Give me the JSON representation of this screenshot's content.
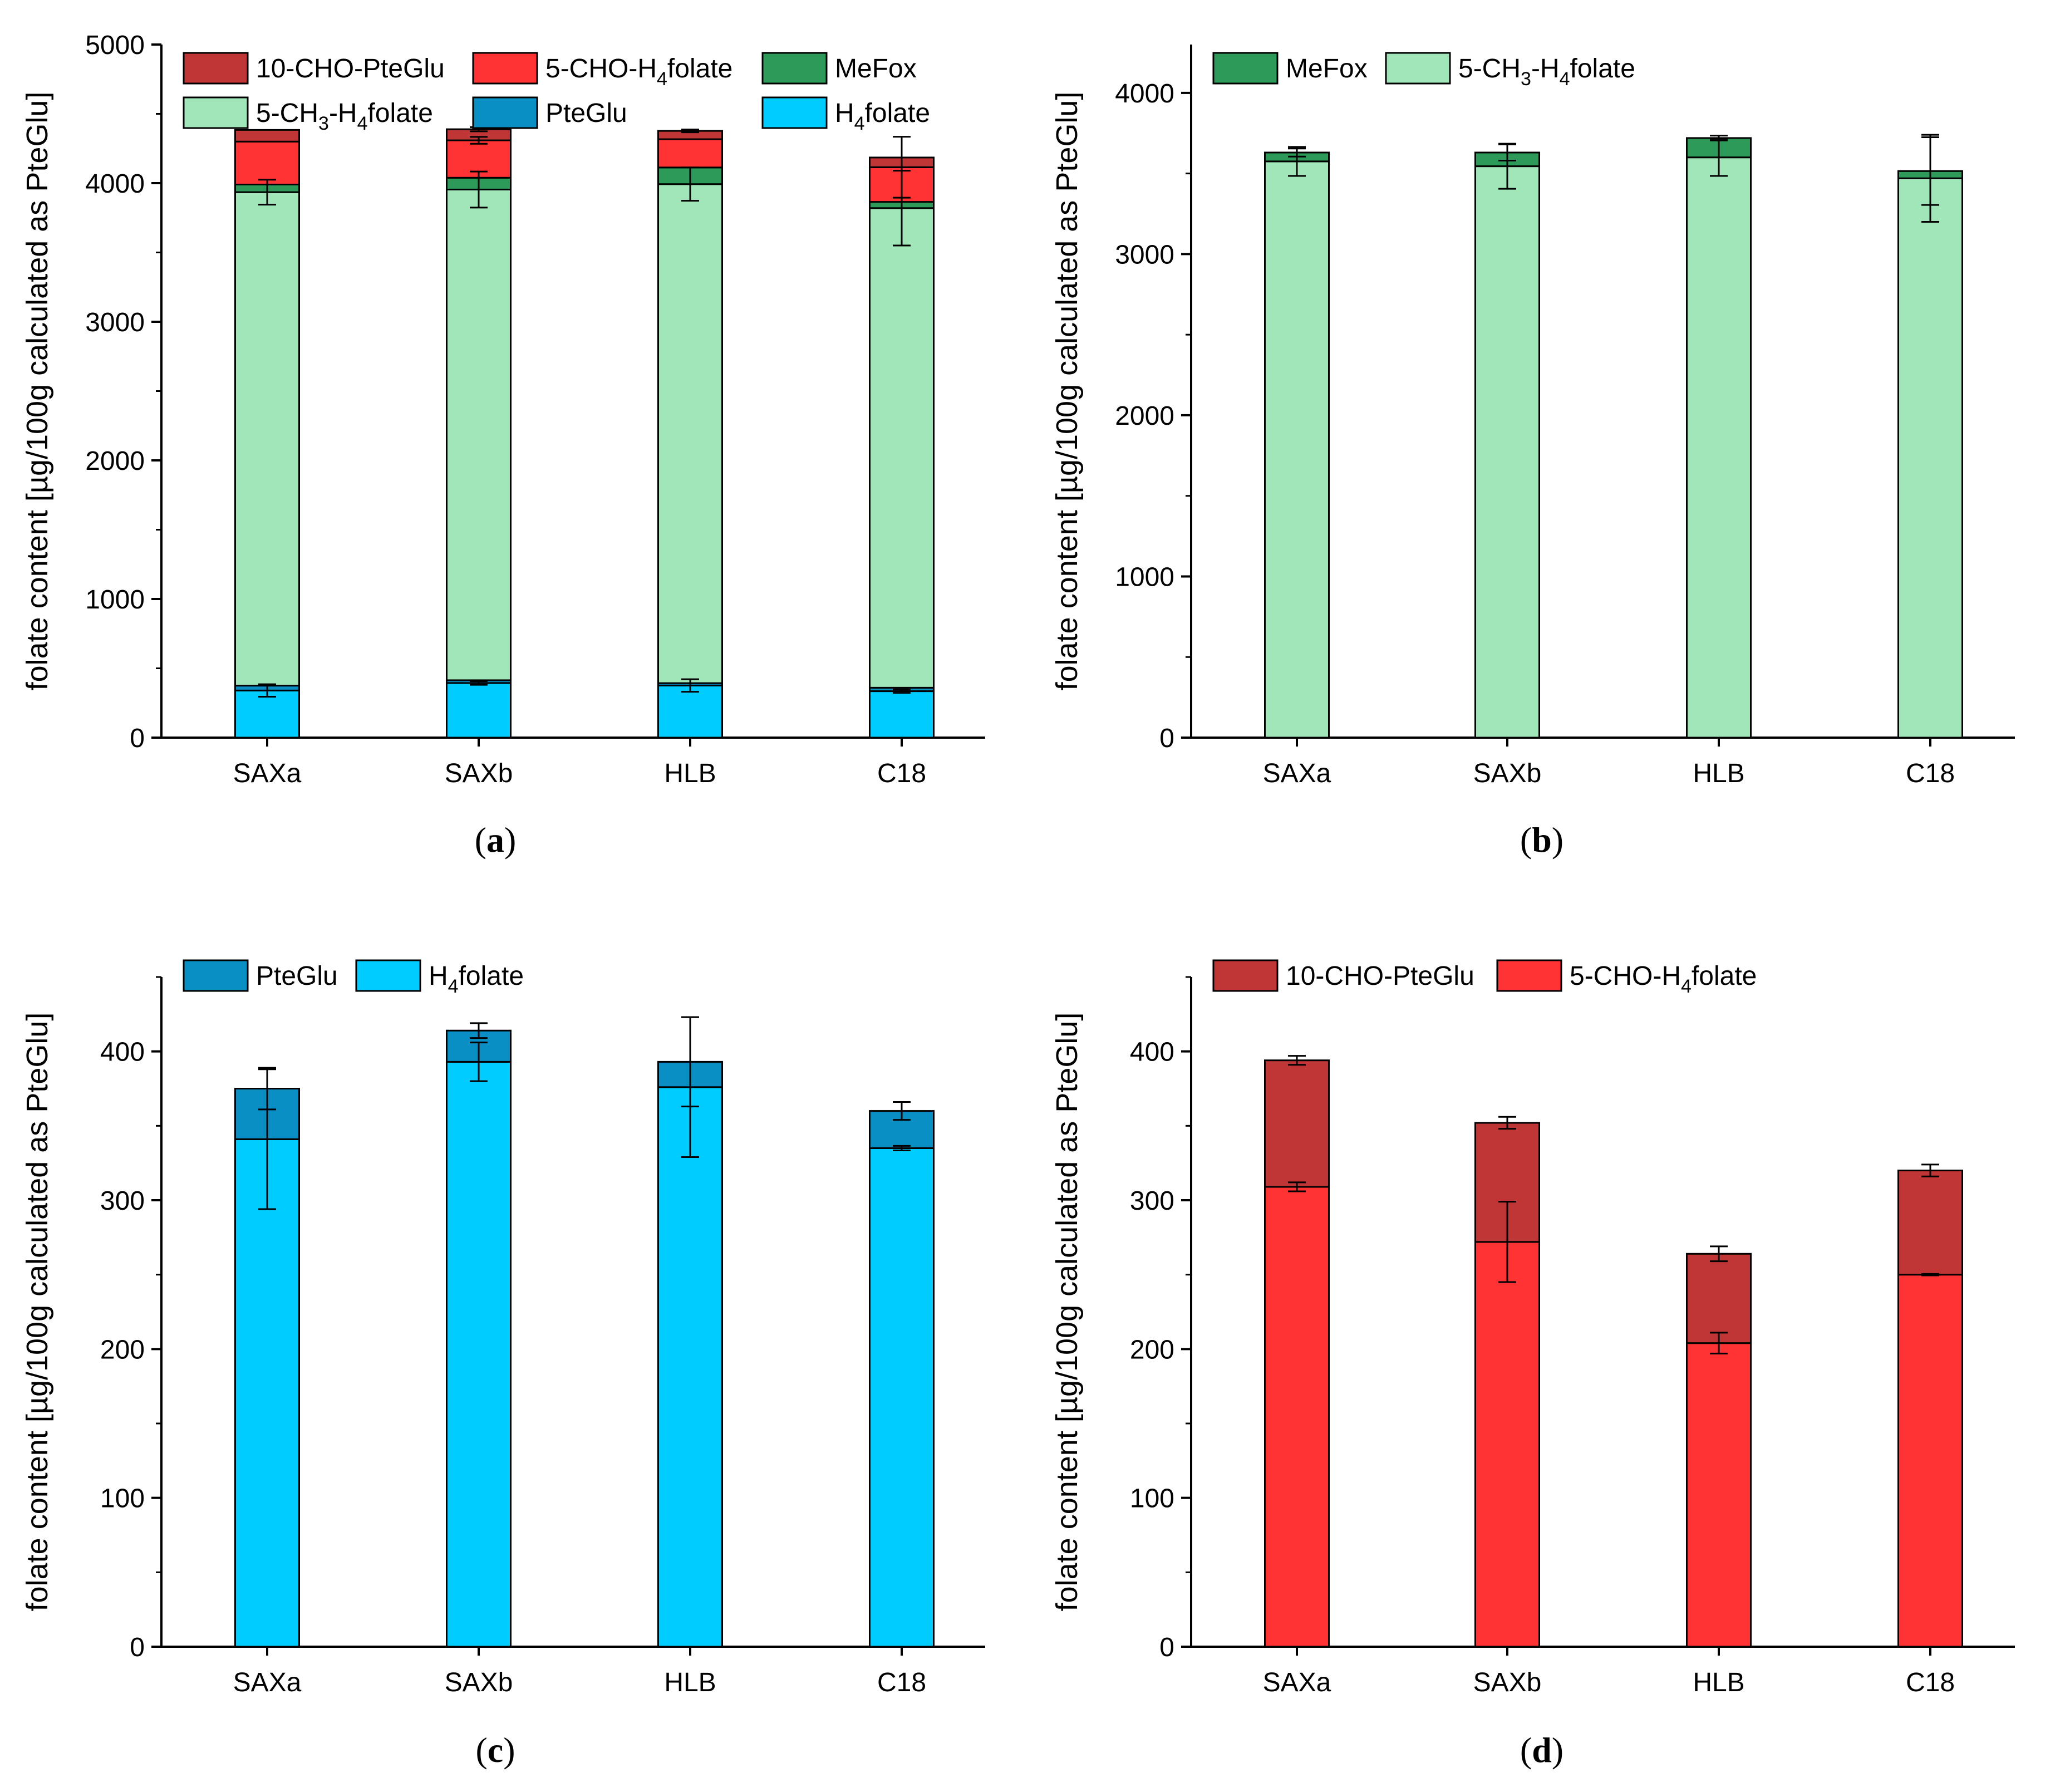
{
  "figure": {
    "y_axis_title": "folate content [µg/100g calculated as PteGlu]"
  },
  "chart_data": [
    {
      "panel": "a",
      "type": "bar",
      "stacked": true,
      "categories": [
        "SAXa",
        "SAXb",
        "HLB",
        "C18"
      ],
      "ylim": [
        0,
        5000
      ],
      "yticks": [
        0,
        1000,
        2000,
        3000,
        4000,
        5000
      ],
      "minor_ticks": true,
      "ylabel": "folate content [µg/100g calculated as PteGlu]",
      "legend": {
        "placement": "top",
        "columns": 3,
        "order": [
          "10-CHO-PteGlu",
          "5-CHO-H4folate",
          "MeFox",
          "5-CH3-H4folate",
          "PteGlu",
          "H4folate"
        ]
      },
      "series": [
        {
          "name": "H4folate",
          "label_base": "H",
          "label_sub": "4",
          "label_rest": "folate",
          "color": "#00CCFF",
          "values": [
            340,
            394,
            376,
            335
          ],
          "errors": [
            45,
            13,
            45,
            12
          ]
        },
        {
          "name": "PteGlu",
          "label_base": "PteGlu",
          "label_sub": "",
          "label_rest": "",
          "color": "#0A8FC4",
          "values": [
            35,
            20,
            17,
            25
          ],
          "errors": [
            0,
            0,
            0,
            0
          ]
        },
        {
          "name": "5-CH3-H4folate",
          "label_base": "5-CH",
          "label_sub": "3",
          "label_rest": "-H",
          "label_sub2": "4",
          "label_rest2": "folate",
          "color": "#A0E6B8",
          "values": [
            3560,
            3540,
            3600,
            3460
          ],
          "errors": [
            90,
            130,
            120,
            270
          ]
        },
        {
          "name": "MeFox",
          "label_base": "MeFox",
          "label_sub": "",
          "label_rest": "",
          "color": "#2E9A5A",
          "values": [
            55,
            85,
            120,
            45
          ],
          "errors": [
            0,
            0,
            0,
            0
          ]
        },
        {
          "name": "5-CHO-H4folate",
          "label_base": "5-CHO-H",
          "label_sub": "4",
          "label_rest": "folate",
          "color": "#FF3333",
          "values": [
            310,
            270,
            204,
            250
          ],
          "errors": [
            0,
            25,
            0,
            220
          ]
        },
        {
          "name": "10-CHO-PteGlu",
          "label_base": "10-CHO-PteGlu",
          "label_sub": "",
          "label_rest": "",
          "color": "#C03535",
          "values": [
            84,
            80,
            60,
            70
          ],
          "errors": [
            0,
            15,
            10,
            0
          ]
        }
      ]
    },
    {
      "panel": "b",
      "type": "bar",
      "stacked": true,
      "categories": [
        "SAXa",
        "SAXb",
        "HLB",
        "C18"
      ],
      "ylim": [
        0,
        4300
      ],
      "yticks": [
        0,
        1000,
        2000,
        3000,
        4000
      ],
      "minor_ticks": true,
      "ylabel": "folate content [µg/100g calculated as PteGlu]",
      "legend": {
        "placement": "top",
        "columns": 2,
        "order": [
          "MeFox",
          "5-CH3-H4folate"
        ]
      },
      "series": [
        {
          "name": "5-CH3-H4folate",
          "label_base": "5-CH",
          "label_sub": "3",
          "label_rest": "-H",
          "label_sub2": "4",
          "label_rest2": "folate",
          "color": "#A0E6B8",
          "values": [
            3575,
            3545,
            3600,
            3470
          ],
          "errors": [
            90,
            140,
            115,
            270
          ]
        },
        {
          "name": "MeFox",
          "label_base": "MeFox",
          "label_sub": "",
          "label_rest": "",
          "color": "#2E9A5A",
          "values": [
            55,
            85,
            120,
            45
          ],
          "errors": [
            25,
            50,
            15,
            210
          ]
        }
      ]
    },
    {
      "panel": "c",
      "type": "bar",
      "stacked": true,
      "categories": [
        "SAXa",
        "SAXb",
        "HLB",
        "C18"
      ],
      "ylim": [
        0,
        450
      ],
      "yticks": [
        0,
        100,
        200,
        300,
        400
      ],
      "minor_ticks": true,
      "ylabel": "folate content [µg/100g calculated as PteGlu]",
      "legend": {
        "placement": "top",
        "columns": 2,
        "order": [
          "PteGlu",
          "H4folate"
        ]
      },
      "series": [
        {
          "name": "H4folate",
          "label_base": "H",
          "label_sub": "4",
          "label_rest": "folate",
          "color": "#00CCFF",
          "values": [
            341,
            393,
            376,
            335
          ],
          "errors": [
            47,
            13,
            47,
            1.5
          ]
        },
        {
          "name": "PteGlu",
          "label_base": "PteGlu",
          "label_sub": "",
          "label_rest": "",
          "color": "#0A8FC4",
          "values": [
            34,
            21,
            17,
            25
          ],
          "errors": [
            14,
            5,
            30,
            6
          ]
        }
      ]
    },
    {
      "panel": "d",
      "type": "bar",
      "stacked": true,
      "categories": [
        "SAXa",
        "SAXb",
        "HLB",
        "C18"
      ],
      "ylim": [
        0,
        450
      ],
      "yticks": [
        0,
        100,
        200,
        300,
        400
      ],
      "minor_ticks": true,
      "ylabel": "folate content [µg/100g calculated as PteGlu]",
      "legend": {
        "placement": "top",
        "columns": 2,
        "order": [
          "10-CHO-PteGlu",
          "5-CHO-H4folate"
        ]
      },
      "series": [
        {
          "name": "5-CHO-H4folate",
          "label_base": "5-CHO-H",
          "label_sub": "4",
          "label_rest": "folate",
          "color": "#FF3333",
          "values": [
            309,
            272,
            204,
            250
          ],
          "errors": [
            3,
            27,
            7,
            0.5
          ]
        },
        {
          "name": "10-CHO-PteGlu",
          "label_base": "10-CHO-PteGlu",
          "label_sub": "",
          "label_rest": "",
          "color": "#C03535",
          "values": [
            85,
            80,
            60,
            70
          ],
          "errors": [
            3,
            4,
            5,
            4
          ]
        }
      ]
    }
  ]
}
